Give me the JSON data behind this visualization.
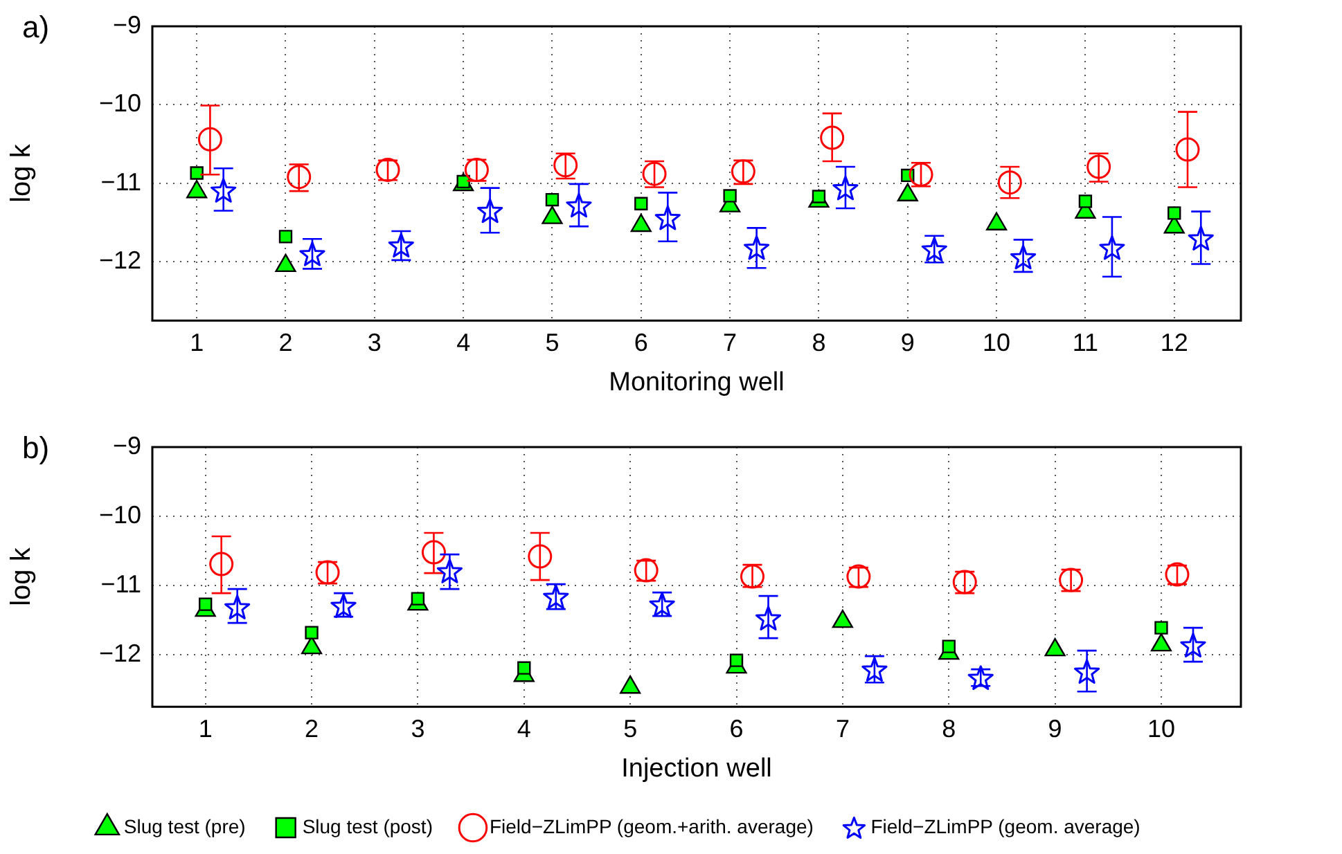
{
  "chart_data": [
    {
      "type": "scatter",
      "title": "a)",
      "xlabel": "Monitoring well",
      "ylabel": "log k",
      "xlim": [
        0.5,
        12.75
      ],
      "xticks": [
        1,
        2,
        3,
        4,
        5,
        6,
        7,
        8,
        9,
        10,
        11,
        12
      ],
      "ylim": [
        -12.75,
        -9
      ],
      "yticks": [
        -12,
        -11,
        -10,
        -9
      ],
      "grid": true,
      "series": [
        {
          "color": "#00ff00",
          "marker": "triangle",
          "x": [
            1,
            2,
            4,
            5,
            6,
            7,
            8,
            9,
            10,
            11,
            12
          ],
          "values": [
            -11.11,
            -12.05,
            -11.02,
            -11.44,
            -11.54,
            -11.29,
            -11.23,
            -11.15,
            -11.52,
            -11.37,
            -11.56
          ]
        },
        {
          "color": "#00ff00",
          "marker": "square",
          "x": [
            1,
            2,
            4,
            5,
            6,
            7,
            8,
            9,
            11,
            12
          ],
          "values": [
            -10.87,
            -11.68,
            -10.98,
            -11.21,
            -11.26,
            -11.16,
            -11.17,
            -10.9,
            -11.23,
            -11.38
          ]
        },
        {
          "color": "#ff0000",
          "marker": "circle",
          "x": [
            1.15,
            2.15,
            3.15,
            4.15,
            5.15,
            6.15,
            7.15,
            8.15,
            9.15,
            10.15,
            11.15,
            12.15
          ],
          "values": [
            -10.44,
            -10.92,
            -10.83,
            -10.83,
            -10.77,
            -10.88,
            -10.85,
            -10.42,
            -10.89,
            -10.99,
            -10.79,
            -10.57
          ],
          "errors": [
            [
              -10.89,
              -10.01
            ],
            [
              -11.1,
              -10.76
            ],
            [
              -10.96,
              -10.71
            ],
            [
              -10.97,
              -10.7
            ],
            [
              -10.94,
              -10.62
            ],
            [
              -11.05,
              -10.72
            ],
            [
              -11.01,
              -10.71
            ],
            [
              -10.72,
              -10.11
            ],
            [
              -11.04,
              -10.74
            ],
            [
              -11.19,
              -10.79
            ],
            [
              -10.98,
              -10.62
            ],
            [
              -11.05,
              -10.09
            ]
          ]
        },
        {
          "color": "#0000ff",
          "marker": "star",
          "x": [
            1.3,
            2.3,
            3.3,
            4.3,
            5.3,
            6.3,
            7.3,
            8.3,
            9.3,
            10.3,
            11.3,
            12.3
          ],
          "values": [
            -11.09,
            -11.9,
            -11.79,
            -11.35,
            -11.28,
            -11.44,
            -11.82,
            -11.06,
            -11.84,
            -11.94,
            -11.82,
            -11.7
          ],
          "errors": [
            [
              -11.35,
              -10.81
            ],
            [
              -12.09,
              -11.71
            ],
            [
              -11.98,
              -11.61
            ],
            [
              -11.63,
              -11.06
            ],
            [
              -11.55,
              -11.01
            ],
            [
              -11.74,
              -11.12
            ],
            [
              -12.08,
              -11.57
            ],
            [
              -11.32,
              -10.79
            ],
            [
              -12.01,
              -11.67
            ],
            [
              -12.13,
              -11.72
            ],
            [
              -12.19,
              -11.43
            ],
            [
              -12.03,
              -11.36
            ]
          ]
        }
      ]
    },
    {
      "type": "scatter",
      "title": "b)",
      "xlabel": "Injection well",
      "ylabel": "log k",
      "xlim": [
        0.5,
        10.75
      ],
      "xticks": [
        1,
        2,
        3,
        4,
        5,
        6,
        7,
        8,
        9,
        10
      ],
      "ylim": [
        -12.75,
        -9
      ],
      "yticks": [
        -12,
        -11,
        -10,
        -9
      ],
      "grid": true,
      "legend": "bottom",
      "series": [
        {
          "name": "Slug test (pre)",
          "color": "#00ff00",
          "marker": "triangle",
          "x": [
            1,
            2,
            3,
            4,
            5,
            6,
            7,
            8,
            9,
            10
          ],
          "values": [
            -11.36,
            -11.9,
            -11.27,
            -12.3,
            -12.47,
            -12.18,
            -11.52,
            -11.98,
            -11.93,
            -11.86
          ]
        },
        {
          "name": "Slug test (post)",
          "color": "#00ff00",
          "marker": "square",
          "x": [
            1,
            2,
            3,
            4,
            6,
            8,
            10
          ],
          "values": [
            -11.27,
            -11.68,
            -11.19,
            -12.19,
            -12.08,
            -11.88,
            -11.61
          ]
        },
        {
          "name": "Field−ZLimPP (geom.+arith. average)",
          "color": "#ff0000",
          "marker": "circle",
          "x": [
            1.15,
            2.15,
            3.15,
            4.15,
            5.15,
            6.15,
            7.15,
            8.15,
            9.15,
            10.15
          ],
          "values": [
            -10.69,
            -10.81,
            -10.52,
            -10.58,
            -10.78,
            -10.87,
            -10.87,
            -10.95,
            -10.92,
            -10.84
          ],
          "errors": [
            [
              -11.11,
              -10.29
            ],
            [
              -10.97,
              -10.66
            ],
            [
              -10.82,
              -10.24
            ],
            [
              -10.92,
              -10.24
            ],
            [
              -10.93,
              -10.64
            ],
            [
              -11.02,
              -10.7
            ],
            [
              -11.02,
              -10.74
            ],
            [
              -11.11,
              -10.8
            ],
            [
              -11.08,
              -10.77
            ],
            [
              -10.98,
              -10.71
            ]
          ]
        },
        {
          "name": "Field−ZLimPP (geom. average)",
          "color": "#0000ff",
          "marker": "star",
          "x": [
            1.3,
            2.3,
            3.3,
            4.3,
            5.3,
            6.3,
            7.3,
            8.3,
            9.3,
            10.3
          ],
          "values": [
            -11.31,
            -11.29,
            -10.79,
            -11.16,
            -11.27,
            -11.47,
            -12.21,
            -12.33,
            -12.24,
            -11.86
          ],
          "errors": [
            [
              -11.54,
              -11.05
            ],
            [
              -11.45,
              -11.11
            ],
            [
              -11.05,
              -10.55
            ],
            [
              -11.34,
              -10.98
            ],
            [
              -11.44,
              -11.1
            ],
            [
              -11.76,
              -11.15
            ],
            [
              -12.4,
              -12.02
            ],
            [
              -12.45,
              -12.21
            ],
            [
              -12.53,
              -11.94
            ],
            [
              -12.1,
              -11.61
            ]
          ]
        }
      ]
    }
  ]
}
